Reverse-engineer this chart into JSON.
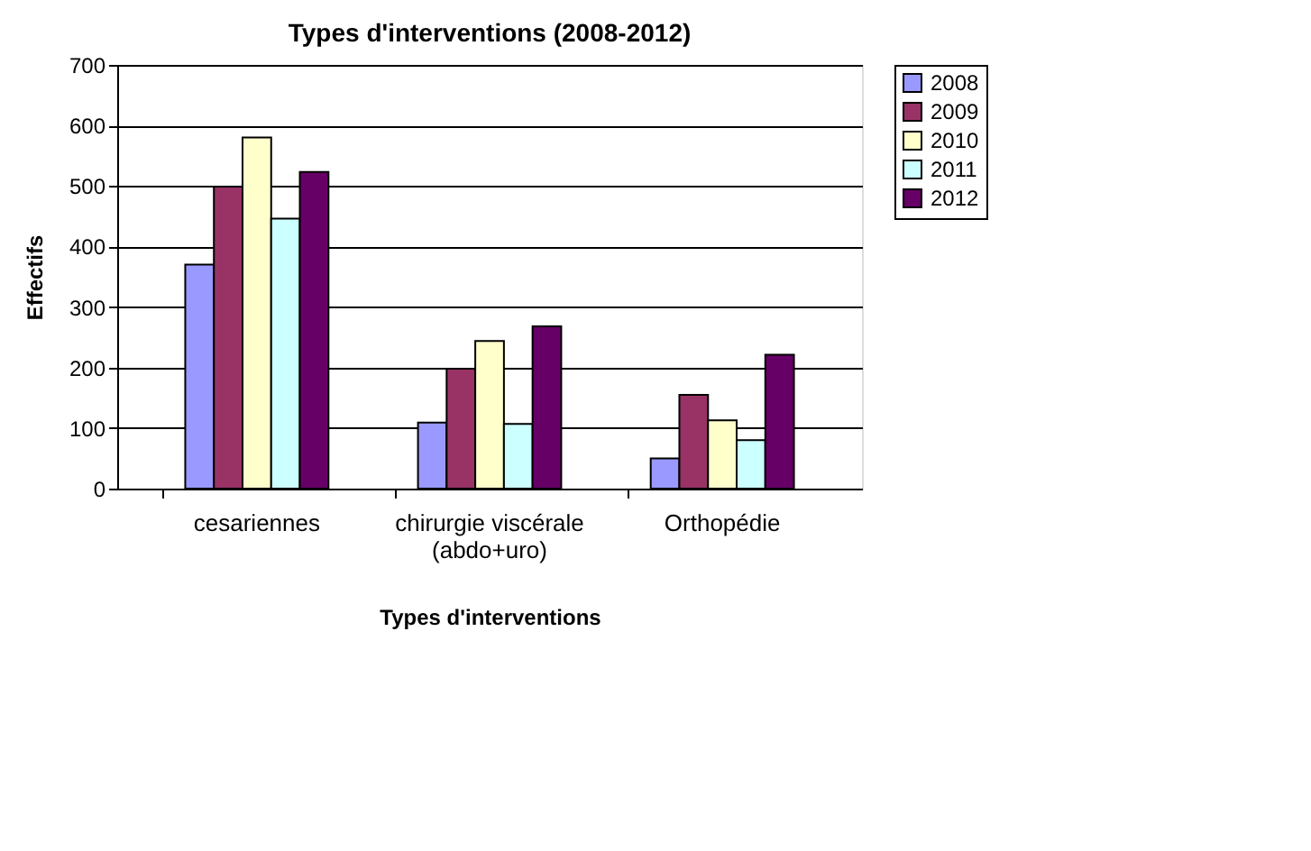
{
  "chart_data": {
    "type": "bar",
    "title": "Types d'interventions (2008-2012)",
    "xlabel": "Types d'interventions",
    "ylabel": "Effectifs",
    "categories": [
      "cesariennes",
      "chirurgie viscérale\n(abdo+uro)",
      "Orthopédie"
    ],
    "series": [
      {
        "name": "2008",
        "color": "#9999ff",
        "values": [
          370,
          109,
          50
        ]
      },
      {
        "name": "2009",
        "color": "#993366",
        "values": [
          499,
          198,
          155
        ]
      },
      {
        "name": "2010",
        "color": "#ffffcc",
        "values": [
          580,
          244,
          113
        ]
      },
      {
        "name": "2011",
        "color": "#ccffff",
        "values": [
          446,
          107,
          80
        ]
      },
      {
        "name": "2012",
        "color": "#660066",
        "values": [
          523,
          268,
          221
        ]
      }
    ],
    "ylim": [
      0,
      700
    ],
    "yticks": [
      0,
      100,
      200,
      300,
      400,
      500,
      600,
      700
    ],
    "grid": "y",
    "legend": "right"
  }
}
